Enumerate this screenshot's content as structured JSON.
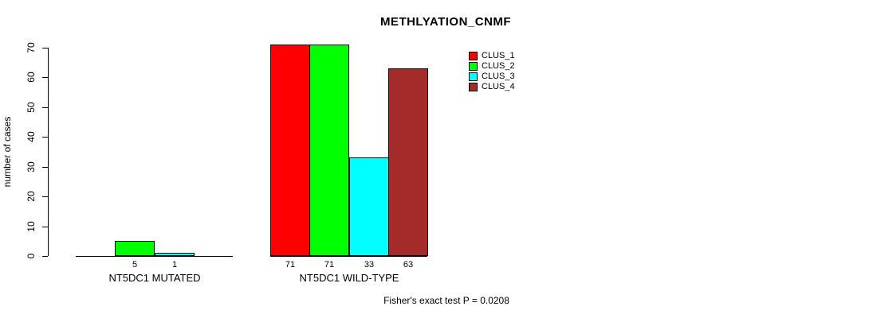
{
  "chart_data": {
    "type": "bar",
    "title": "METHLYATION_CNMF",
    "ylabel": "number of cases",
    "xlabel": "",
    "ylim": [
      0,
      70
    ],
    "ytick_step": 10,
    "yticks": [
      0,
      10,
      20,
      30,
      40,
      50,
      60,
      70
    ],
    "grid": false,
    "legend_position": "top-right",
    "categories": [
      "NT5DC1 MUTATED",
      "NT5DC1 WILD-TYPE"
    ],
    "series": [
      {
        "name": "CLUS_1",
        "color": "#FF0000",
        "values": [
          0,
          71
        ]
      },
      {
        "name": "CLUS_2",
        "color": "#00FF00",
        "values": [
          5,
          71
        ]
      },
      {
        "name": "CLUS_3",
        "color": "#00FFFF",
        "values": [
          1,
          33
        ]
      },
      {
        "name": "CLUS_4",
        "color": "#A52A2A",
        "values": [
          0,
          63
        ]
      }
    ],
    "bar_value_labels": "values shown under each nonzero bar",
    "annotation": "Fisher's exact test P = 0.0208"
  },
  "colors": {
    "background": "#FFFFFF",
    "axis": "#000000",
    "bar_border": "#000000",
    "clus_1": "#FF0000",
    "clus_2": "#00FF00",
    "clus_3": "#00FFFF",
    "clus_4": "#A52A2A"
  }
}
